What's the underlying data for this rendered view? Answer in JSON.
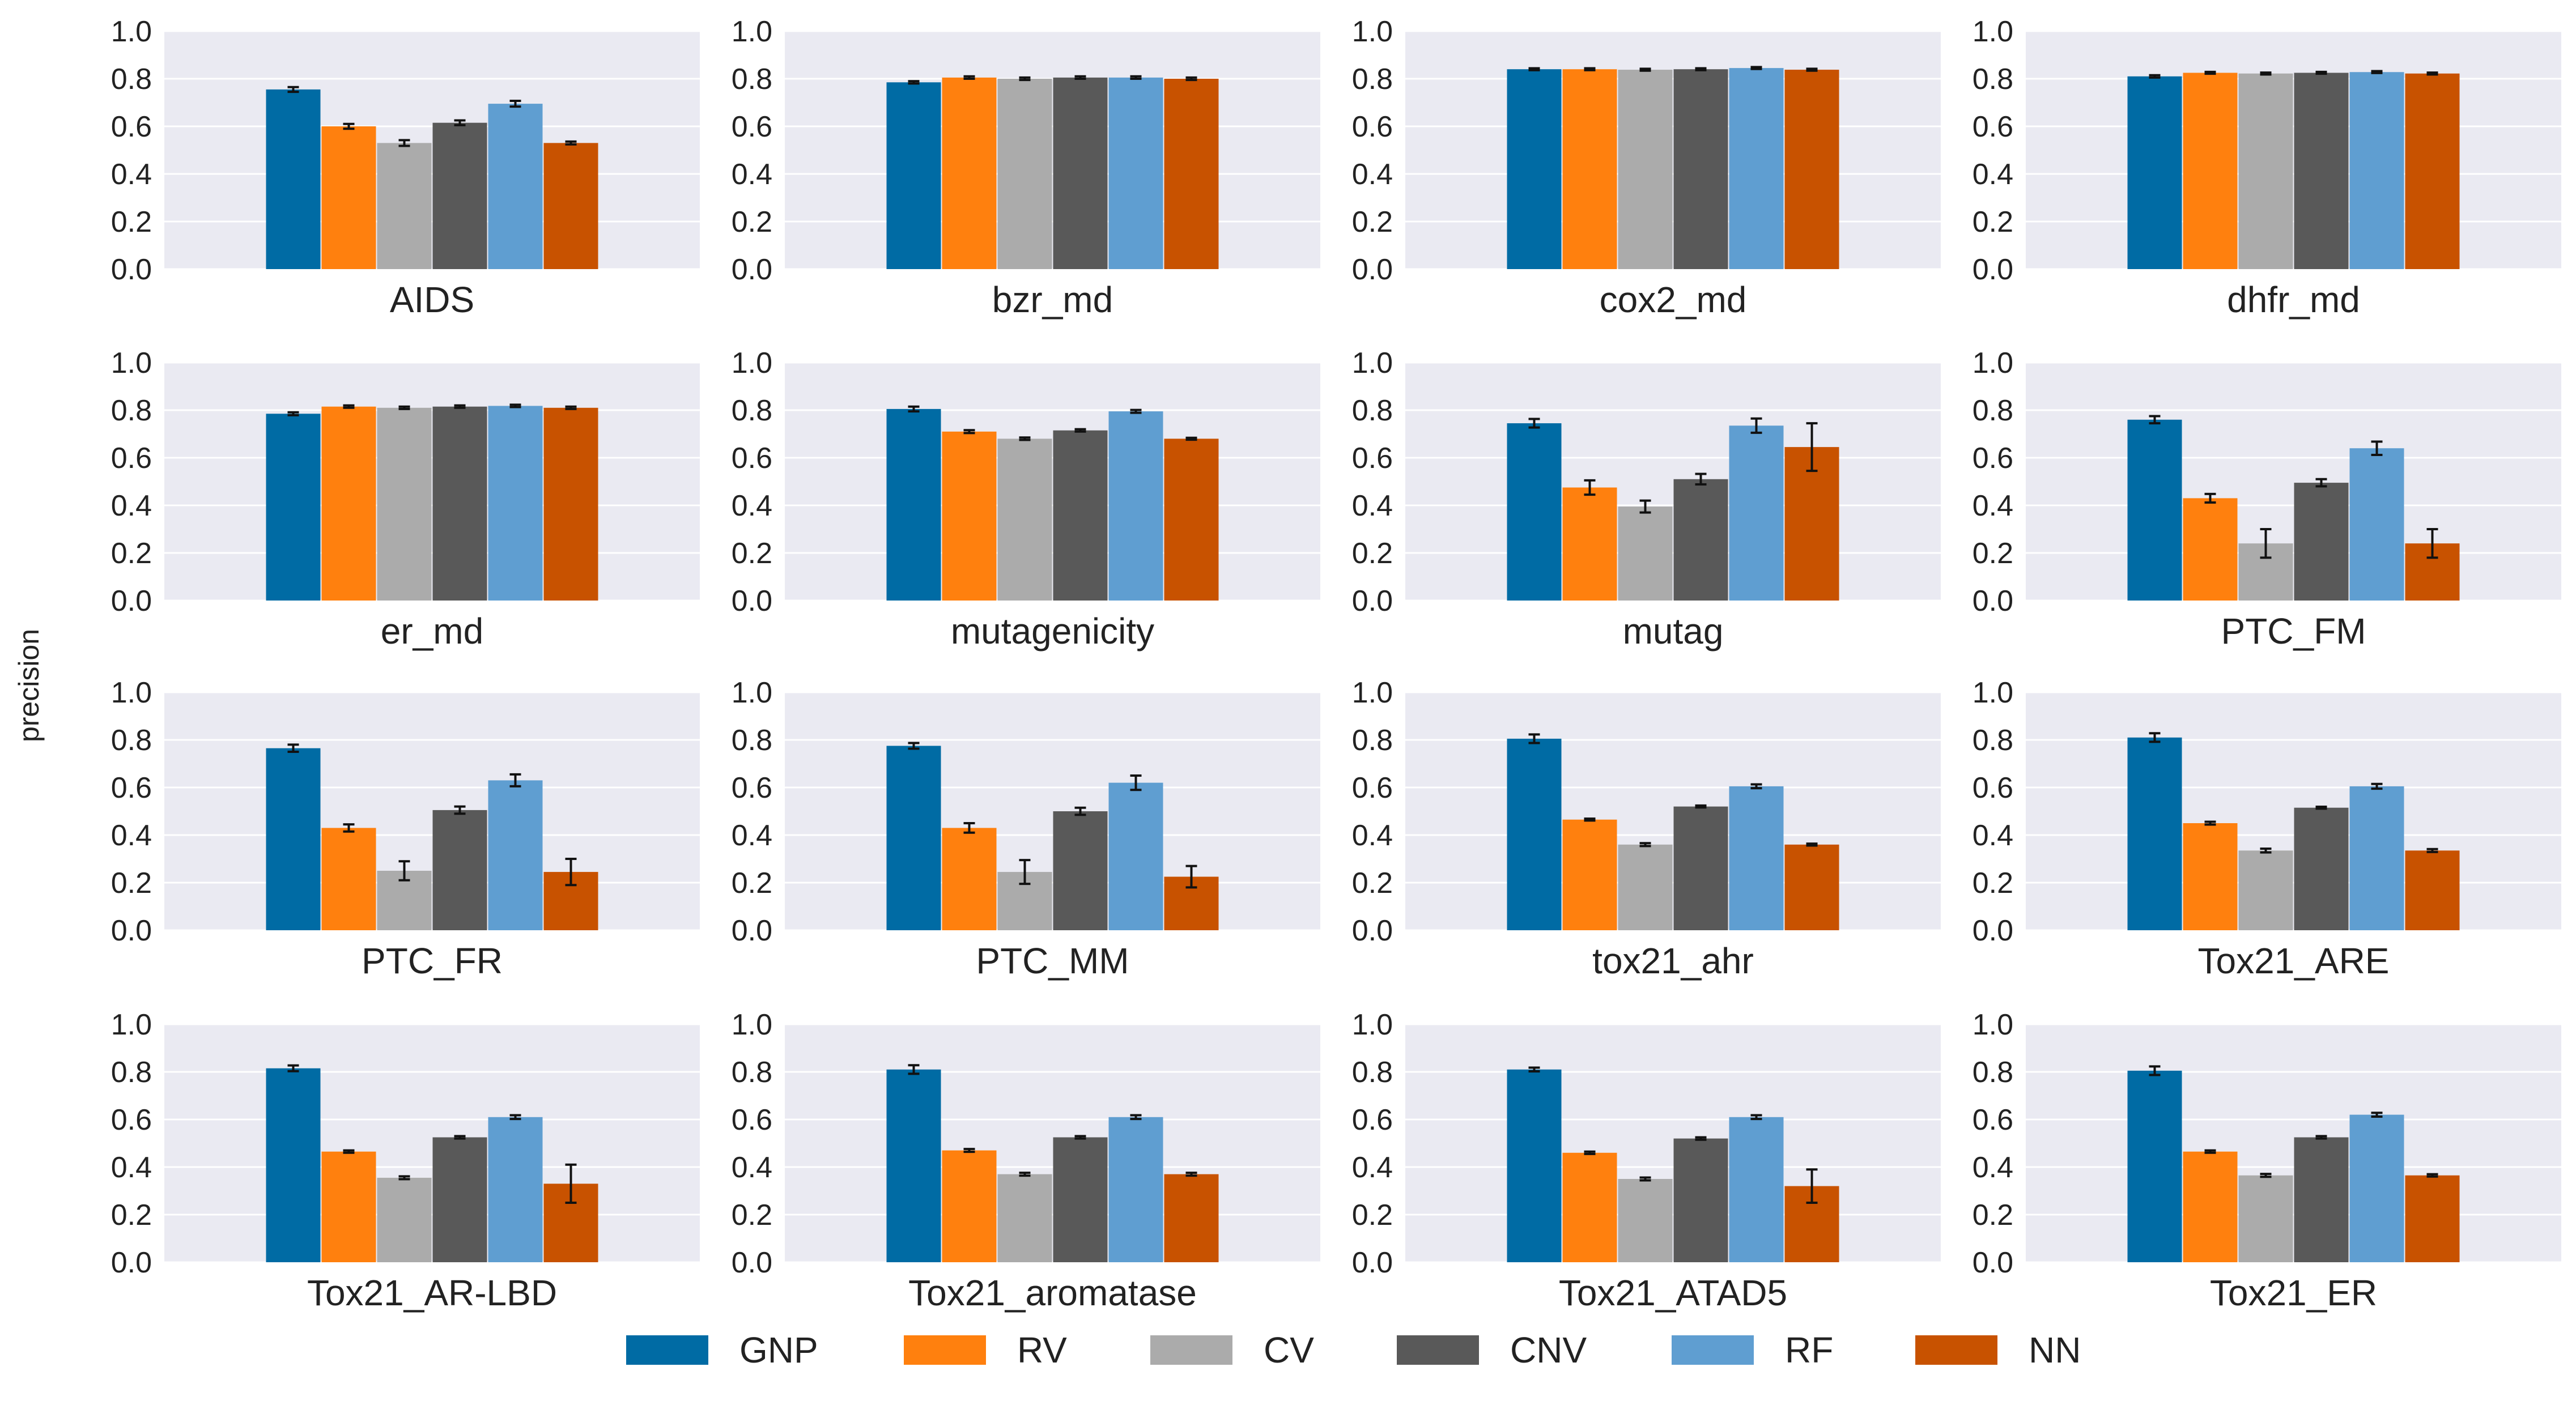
{
  "chart_data": {
    "type": "bar",
    "ylabel": "precision",
    "ylim": [
      0,
      1.0
    ],
    "yticks": [
      "0.0",
      "0.2",
      "0.4",
      "0.6",
      "0.8",
      "1.0"
    ],
    "grid": true,
    "legend_position": "bottom-center",
    "series": [
      {
        "name": "GNP",
        "color": "#006BA4"
      },
      {
        "name": "RV",
        "color": "#FF800E"
      },
      {
        "name": "CV",
        "color": "#ABABAB"
      },
      {
        "name": "CNV",
        "color": "#595959"
      },
      {
        "name": "RF",
        "color": "#5F9ED1"
      },
      {
        "name": "NN",
        "color": "#C85200"
      }
    ],
    "panels": [
      {
        "title": "AIDS",
        "values": [
          0.755,
          0.6,
          0.53,
          0.615,
          0.695,
          0.53
        ],
        "errors": [
          0.01,
          0.01,
          0.012,
          0.01,
          0.012,
          0.006
        ]
      },
      {
        "title": "bzr_md",
        "values": [
          0.785,
          0.805,
          0.8,
          0.805,
          0.805,
          0.8
        ],
        "errors": [
          0.005,
          0.005,
          0.005,
          0.005,
          0.005,
          0.005
        ]
      },
      {
        "title": "cox2_md",
        "values": [
          0.84,
          0.84,
          0.838,
          0.84,
          0.845,
          0.838
        ],
        "errors": [
          0.004,
          0.004,
          0.004,
          0.004,
          0.004,
          0.004
        ]
      },
      {
        "title": "dhfr_md",
        "values": [
          0.81,
          0.825,
          0.822,
          0.825,
          0.828,
          0.822
        ],
        "errors": [
          0.005,
          0.004,
          0.004,
          0.004,
          0.004,
          0.004
        ]
      },
      {
        "title": "er_md",
        "values": [
          0.785,
          0.815,
          0.81,
          0.815,
          0.818,
          0.81
        ],
        "errors": [
          0.006,
          0.005,
          0.005,
          0.005,
          0.005,
          0.005
        ]
      },
      {
        "title": "mutagenicity",
        "values": [
          0.805,
          0.71,
          0.68,
          0.715,
          0.795,
          0.68
        ],
        "errors": [
          0.01,
          0.006,
          0.005,
          0.005,
          0.006,
          0.004
        ]
      },
      {
        "title": "mutag",
        "values": [
          0.745,
          0.475,
          0.395,
          0.51,
          0.735,
          0.645
        ],
        "errors": [
          0.018,
          0.03,
          0.025,
          0.022,
          0.03,
          0.1
        ]
      },
      {
        "title": "PTC_FM",
        "values": [
          0.76,
          0.43,
          0.24,
          0.495,
          0.64,
          0.24
        ],
        "errors": [
          0.015,
          0.018,
          0.06,
          0.015,
          0.028,
          0.06
        ]
      },
      {
        "title": "PTC_FR",
        "values": [
          0.765,
          0.43,
          0.25,
          0.505,
          0.63,
          0.245
        ],
        "errors": [
          0.015,
          0.015,
          0.04,
          0.015,
          0.025,
          0.055
        ]
      },
      {
        "title": "PTC_MM",
        "values": [
          0.775,
          0.43,
          0.245,
          0.5,
          0.62,
          0.225
        ],
        "errors": [
          0.012,
          0.02,
          0.05,
          0.015,
          0.03,
          0.045
        ]
      },
      {
        "title": "tox21_ahr",
        "values": [
          0.805,
          0.465,
          0.36,
          0.52,
          0.605,
          0.36
        ],
        "errors": [
          0.018,
          0.004,
          0.006,
          0.004,
          0.008,
          0.004
        ]
      },
      {
        "title": "Tox21_ARE",
        "values": [
          0.81,
          0.45,
          0.335,
          0.515,
          0.605,
          0.335
        ],
        "errors": [
          0.018,
          0.006,
          0.008,
          0.004,
          0.01,
          0.006
        ]
      },
      {
        "title": "Tox21_AR-LBD",
        "values": [
          0.815,
          0.465,
          0.355,
          0.525,
          0.61,
          0.33
        ],
        "errors": [
          0.012,
          0.005,
          0.006,
          0.005,
          0.008,
          0.08
        ]
      },
      {
        "title": "Tox21_aromatase",
        "values": [
          0.81,
          0.47,
          0.37,
          0.525,
          0.61,
          0.37
        ],
        "errors": [
          0.018,
          0.006,
          0.006,
          0.005,
          0.008,
          0.006
        ]
      },
      {
        "title": "Tox21_ATAD5",
        "values": [
          0.81,
          0.46,
          0.35,
          0.52,
          0.61,
          0.32
        ],
        "errors": [
          0.008,
          0.005,
          0.006,
          0.005,
          0.008,
          0.07
        ]
      },
      {
        "title": "Tox21_ER",
        "values": [
          0.805,
          0.465,
          0.365,
          0.525,
          0.62,
          0.365
        ],
        "errors": [
          0.018,
          0.005,
          0.006,
          0.005,
          0.008,
          0.005
        ]
      }
    ]
  }
}
